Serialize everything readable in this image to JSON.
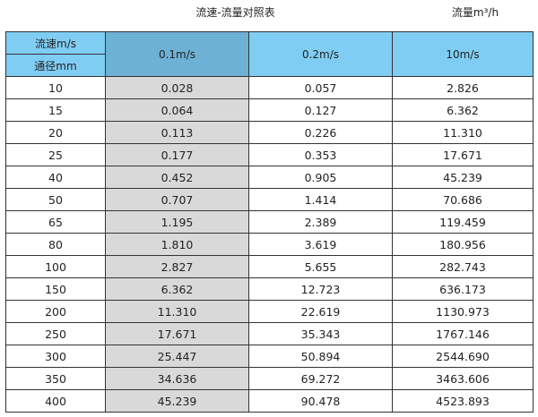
{
  "title": "流速-流量对照表",
  "unit": "流量m³/h",
  "header": {
    "velocity_label": "流速m/s",
    "diameter_label": "通径mm",
    "columns": [
      "0.1m/s",
      "0.2m/s",
      "10m/s"
    ]
  },
  "colors": {
    "header": "#7fcdf3",
    "selected_header": "#6db1d5",
    "selected_column": "#d9d9d9"
  },
  "rows": [
    [
      "10",
      "0.028",
      "0.057",
      "2.826"
    ],
    [
      "15",
      "0.064",
      "0.127",
      "6.362"
    ],
    [
      "20",
      "0.113",
      "0.226",
      "11.310"
    ],
    [
      "25",
      "0.177",
      "0.353",
      "17.671"
    ],
    [
      "40",
      "0.452",
      "0.905",
      "45.239"
    ],
    [
      "50",
      "0.707",
      "1.414",
      "70.686"
    ],
    [
      "65",
      "1.195",
      "2.389",
      "119.459"
    ],
    [
      "80",
      "1.810",
      "3.619",
      "180.956"
    ],
    [
      "100",
      "2.827",
      "5.655",
      "282.743"
    ],
    [
      "150",
      "6.362",
      "12.723",
      "636.173"
    ],
    [
      "200",
      "11.310",
      "22.619",
      "1130.973"
    ],
    [
      "250",
      "17.671",
      "35.343",
      "1767.146"
    ],
    [
      "300",
      "25.447",
      "50.894",
      "2544.690"
    ],
    [
      "350",
      "34.636",
      "69.272",
      "3463.606"
    ],
    [
      "400",
      "45.239",
      "90.478",
      "4523.893"
    ]
  ]
}
